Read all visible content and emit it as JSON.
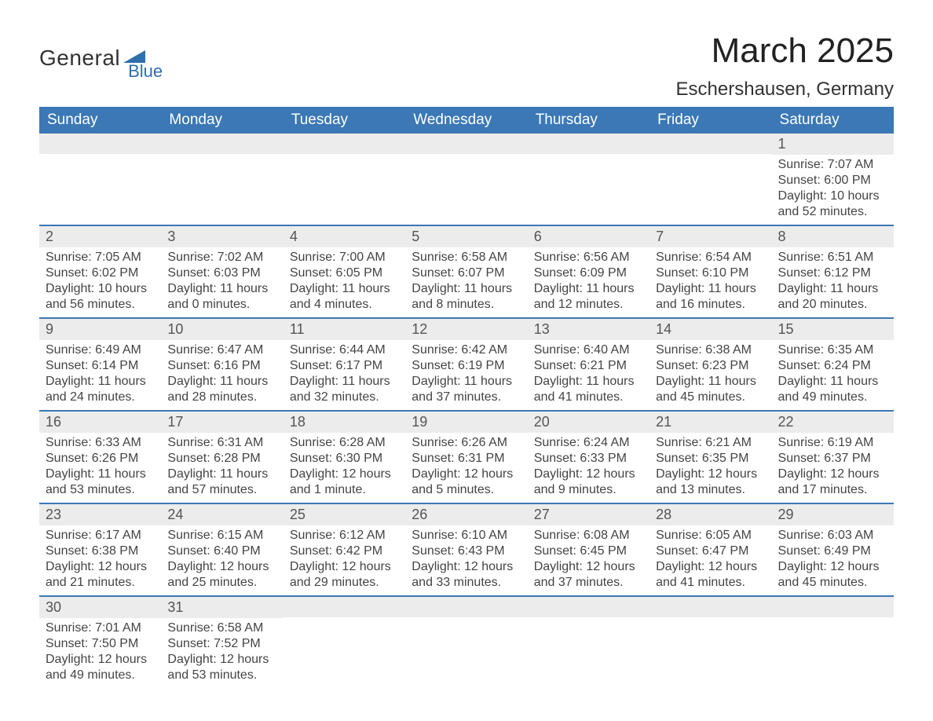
{
  "logo": {
    "general": "General",
    "blue": "Blue"
  },
  "title": "March 2025",
  "location": "Eschershausen, Germany",
  "colors": {
    "header_bg": "#3b78b5",
    "header_text": "#ffffff",
    "row_divider": "#3b78b5",
    "daynum_bg": "#ececec",
    "body_text": "#444444",
    "logo_accent": "#2f6fad"
  },
  "weekdays": [
    "Sunday",
    "Monday",
    "Tuesday",
    "Wednesday",
    "Thursday",
    "Friday",
    "Saturday"
  ],
  "weeks": [
    [
      null,
      null,
      null,
      null,
      null,
      null,
      {
        "n": "1",
        "sr": "Sunrise: 7:07 AM",
        "ss": "Sunset: 6:00 PM",
        "d1": "Daylight: 10 hours",
        "d2": "and 52 minutes."
      }
    ],
    [
      {
        "n": "2",
        "sr": "Sunrise: 7:05 AM",
        "ss": "Sunset: 6:02 PM",
        "d1": "Daylight: 10 hours",
        "d2": "and 56 minutes."
      },
      {
        "n": "3",
        "sr": "Sunrise: 7:02 AM",
        "ss": "Sunset: 6:03 PM",
        "d1": "Daylight: 11 hours",
        "d2": "and 0 minutes."
      },
      {
        "n": "4",
        "sr": "Sunrise: 7:00 AM",
        "ss": "Sunset: 6:05 PM",
        "d1": "Daylight: 11 hours",
        "d2": "and 4 minutes."
      },
      {
        "n": "5",
        "sr": "Sunrise: 6:58 AM",
        "ss": "Sunset: 6:07 PM",
        "d1": "Daylight: 11 hours",
        "d2": "and 8 minutes."
      },
      {
        "n": "6",
        "sr": "Sunrise: 6:56 AM",
        "ss": "Sunset: 6:09 PM",
        "d1": "Daylight: 11 hours",
        "d2": "and 12 minutes."
      },
      {
        "n": "7",
        "sr": "Sunrise: 6:54 AM",
        "ss": "Sunset: 6:10 PM",
        "d1": "Daylight: 11 hours",
        "d2": "and 16 minutes."
      },
      {
        "n": "8",
        "sr": "Sunrise: 6:51 AM",
        "ss": "Sunset: 6:12 PM",
        "d1": "Daylight: 11 hours",
        "d2": "and 20 minutes."
      }
    ],
    [
      {
        "n": "9",
        "sr": "Sunrise: 6:49 AM",
        "ss": "Sunset: 6:14 PM",
        "d1": "Daylight: 11 hours",
        "d2": "and 24 minutes."
      },
      {
        "n": "10",
        "sr": "Sunrise: 6:47 AM",
        "ss": "Sunset: 6:16 PM",
        "d1": "Daylight: 11 hours",
        "d2": "and 28 minutes."
      },
      {
        "n": "11",
        "sr": "Sunrise: 6:44 AM",
        "ss": "Sunset: 6:17 PM",
        "d1": "Daylight: 11 hours",
        "d2": "and 32 minutes."
      },
      {
        "n": "12",
        "sr": "Sunrise: 6:42 AM",
        "ss": "Sunset: 6:19 PM",
        "d1": "Daylight: 11 hours",
        "d2": "and 37 minutes."
      },
      {
        "n": "13",
        "sr": "Sunrise: 6:40 AM",
        "ss": "Sunset: 6:21 PM",
        "d1": "Daylight: 11 hours",
        "d2": "and 41 minutes."
      },
      {
        "n": "14",
        "sr": "Sunrise: 6:38 AM",
        "ss": "Sunset: 6:23 PM",
        "d1": "Daylight: 11 hours",
        "d2": "and 45 minutes."
      },
      {
        "n": "15",
        "sr": "Sunrise: 6:35 AM",
        "ss": "Sunset: 6:24 PM",
        "d1": "Daylight: 11 hours",
        "d2": "and 49 minutes."
      }
    ],
    [
      {
        "n": "16",
        "sr": "Sunrise: 6:33 AM",
        "ss": "Sunset: 6:26 PM",
        "d1": "Daylight: 11 hours",
        "d2": "and 53 minutes."
      },
      {
        "n": "17",
        "sr": "Sunrise: 6:31 AM",
        "ss": "Sunset: 6:28 PM",
        "d1": "Daylight: 11 hours",
        "d2": "and 57 minutes."
      },
      {
        "n": "18",
        "sr": "Sunrise: 6:28 AM",
        "ss": "Sunset: 6:30 PM",
        "d1": "Daylight: 12 hours",
        "d2": "and 1 minute."
      },
      {
        "n": "19",
        "sr": "Sunrise: 6:26 AM",
        "ss": "Sunset: 6:31 PM",
        "d1": "Daylight: 12 hours",
        "d2": "and 5 minutes."
      },
      {
        "n": "20",
        "sr": "Sunrise: 6:24 AM",
        "ss": "Sunset: 6:33 PM",
        "d1": "Daylight: 12 hours",
        "d2": "and 9 minutes."
      },
      {
        "n": "21",
        "sr": "Sunrise: 6:21 AM",
        "ss": "Sunset: 6:35 PM",
        "d1": "Daylight: 12 hours",
        "d2": "and 13 minutes."
      },
      {
        "n": "22",
        "sr": "Sunrise: 6:19 AM",
        "ss": "Sunset: 6:37 PM",
        "d1": "Daylight: 12 hours",
        "d2": "and 17 minutes."
      }
    ],
    [
      {
        "n": "23",
        "sr": "Sunrise: 6:17 AM",
        "ss": "Sunset: 6:38 PM",
        "d1": "Daylight: 12 hours",
        "d2": "and 21 minutes."
      },
      {
        "n": "24",
        "sr": "Sunrise: 6:15 AM",
        "ss": "Sunset: 6:40 PM",
        "d1": "Daylight: 12 hours",
        "d2": "and 25 minutes."
      },
      {
        "n": "25",
        "sr": "Sunrise: 6:12 AM",
        "ss": "Sunset: 6:42 PM",
        "d1": "Daylight: 12 hours",
        "d2": "and 29 minutes."
      },
      {
        "n": "26",
        "sr": "Sunrise: 6:10 AM",
        "ss": "Sunset: 6:43 PM",
        "d1": "Daylight: 12 hours",
        "d2": "and 33 minutes."
      },
      {
        "n": "27",
        "sr": "Sunrise: 6:08 AM",
        "ss": "Sunset: 6:45 PM",
        "d1": "Daylight: 12 hours",
        "d2": "and 37 minutes."
      },
      {
        "n": "28",
        "sr": "Sunrise: 6:05 AM",
        "ss": "Sunset: 6:47 PM",
        "d1": "Daylight: 12 hours",
        "d2": "and 41 minutes."
      },
      {
        "n": "29",
        "sr": "Sunrise: 6:03 AM",
        "ss": "Sunset: 6:49 PM",
        "d1": "Daylight: 12 hours",
        "d2": "and 45 minutes."
      }
    ],
    [
      {
        "n": "30",
        "sr": "Sunrise: 7:01 AM",
        "ss": "Sunset: 7:50 PM",
        "d1": "Daylight: 12 hours",
        "d2": "and 49 minutes."
      },
      {
        "n": "31",
        "sr": "Sunrise: 6:58 AM",
        "ss": "Sunset: 7:52 PM",
        "d1": "Daylight: 12 hours",
        "d2": "and 53 minutes."
      },
      null,
      null,
      null,
      null,
      null
    ]
  ]
}
